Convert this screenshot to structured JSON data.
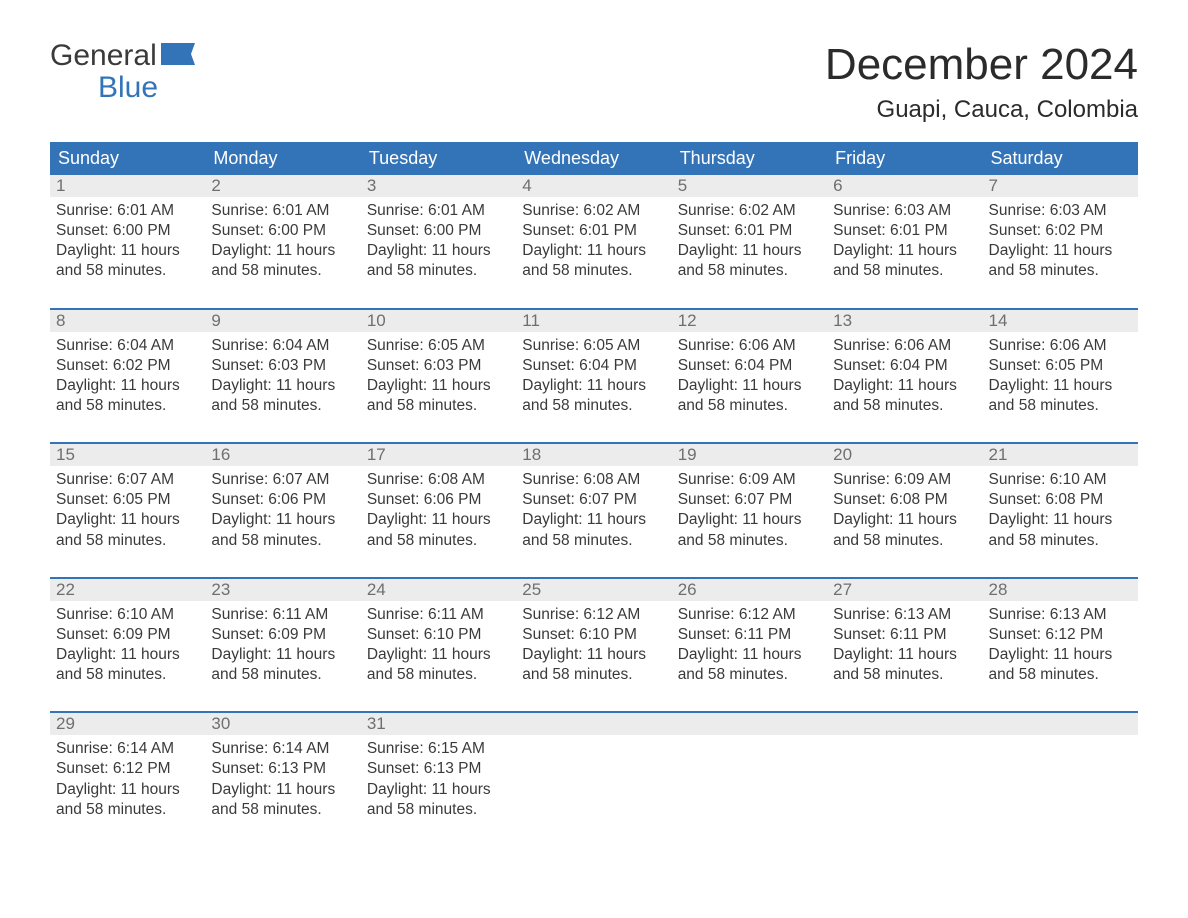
{
  "logo": {
    "line1": "General",
    "line2": "Blue",
    "flag_color": "#3374b8"
  },
  "title": "December 2024",
  "location": "Guapi, Cauca, Colombia",
  "colors": {
    "header_bg": "#3374b8",
    "header_text": "#ffffff",
    "daynum_bg": "#ececec",
    "daynum_text": "#6f6f6f",
    "body_text": "#3a3a3a",
    "week_border": "#3374b8",
    "page_bg": "#ffffff"
  },
  "typography": {
    "title_fontsize": 44,
    "location_fontsize": 24,
    "dayheader_fontsize": 18,
    "daynum_fontsize": 17,
    "cell_fontsize": 15.5,
    "font_family": "Arial"
  },
  "day_headers": [
    "Sunday",
    "Monday",
    "Tuesday",
    "Wednesday",
    "Thursday",
    "Friday",
    "Saturday"
  ],
  "weeks": [
    [
      {
        "n": "1",
        "sunrise": "Sunrise: 6:01 AM",
        "sunset": "Sunset: 6:00 PM",
        "dl1": "Daylight: 11 hours",
        "dl2": "and 58 minutes."
      },
      {
        "n": "2",
        "sunrise": "Sunrise: 6:01 AM",
        "sunset": "Sunset: 6:00 PM",
        "dl1": "Daylight: 11 hours",
        "dl2": "and 58 minutes."
      },
      {
        "n": "3",
        "sunrise": "Sunrise: 6:01 AM",
        "sunset": "Sunset: 6:00 PM",
        "dl1": "Daylight: 11 hours",
        "dl2": "and 58 minutes."
      },
      {
        "n": "4",
        "sunrise": "Sunrise: 6:02 AM",
        "sunset": "Sunset: 6:01 PM",
        "dl1": "Daylight: 11 hours",
        "dl2": "and 58 minutes."
      },
      {
        "n": "5",
        "sunrise": "Sunrise: 6:02 AM",
        "sunset": "Sunset: 6:01 PM",
        "dl1": "Daylight: 11 hours",
        "dl2": "and 58 minutes."
      },
      {
        "n": "6",
        "sunrise": "Sunrise: 6:03 AM",
        "sunset": "Sunset: 6:01 PM",
        "dl1": "Daylight: 11 hours",
        "dl2": "and 58 minutes."
      },
      {
        "n": "7",
        "sunrise": "Sunrise: 6:03 AM",
        "sunset": "Sunset: 6:02 PM",
        "dl1": "Daylight: 11 hours",
        "dl2": "and 58 minutes."
      }
    ],
    [
      {
        "n": "8",
        "sunrise": "Sunrise: 6:04 AM",
        "sunset": "Sunset: 6:02 PM",
        "dl1": "Daylight: 11 hours",
        "dl2": "and 58 minutes."
      },
      {
        "n": "9",
        "sunrise": "Sunrise: 6:04 AM",
        "sunset": "Sunset: 6:03 PM",
        "dl1": "Daylight: 11 hours",
        "dl2": "and 58 minutes."
      },
      {
        "n": "10",
        "sunrise": "Sunrise: 6:05 AM",
        "sunset": "Sunset: 6:03 PM",
        "dl1": "Daylight: 11 hours",
        "dl2": "and 58 minutes."
      },
      {
        "n": "11",
        "sunrise": "Sunrise: 6:05 AM",
        "sunset": "Sunset: 6:04 PM",
        "dl1": "Daylight: 11 hours",
        "dl2": "and 58 minutes."
      },
      {
        "n": "12",
        "sunrise": "Sunrise: 6:06 AM",
        "sunset": "Sunset: 6:04 PM",
        "dl1": "Daylight: 11 hours",
        "dl2": "and 58 minutes."
      },
      {
        "n": "13",
        "sunrise": "Sunrise: 6:06 AM",
        "sunset": "Sunset: 6:04 PM",
        "dl1": "Daylight: 11 hours",
        "dl2": "and 58 minutes."
      },
      {
        "n": "14",
        "sunrise": "Sunrise: 6:06 AM",
        "sunset": "Sunset: 6:05 PM",
        "dl1": "Daylight: 11 hours",
        "dl2": "and 58 minutes."
      }
    ],
    [
      {
        "n": "15",
        "sunrise": "Sunrise: 6:07 AM",
        "sunset": "Sunset: 6:05 PM",
        "dl1": "Daylight: 11 hours",
        "dl2": "and 58 minutes."
      },
      {
        "n": "16",
        "sunrise": "Sunrise: 6:07 AM",
        "sunset": "Sunset: 6:06 PM",
        "dl1": "Daylight: 11 hours",
        "dl2": "and 58 minutes."
      },
      {
        "n": "17",
        "sunrise": "Sunrise: 6:08 AM",
        "sunset": "Sunset: 6:06 PM",
        "dl1": "Daylight: 11 hours",
        "dl2": "and 58 minutes."
      },
      {
        "n": "18",
        "sunrise": "Sunrise: 6:08 AM",
        "sunset": "Sunset: 6:07 PM",
        "dl1": "Daylight: 11 hours",
        "dl2": "and 58 minutes."
      },
      {
        "n": "19",
        "sunrise": "Sunrise: 6:09 AM",
        "sunset": "Sunset: 6:07 PM",
        "dl1": "Daylight: 11 hours",
        "dl2": "and 58 minutes."
      },
      {
        "n": "20",
        "sunrise": "Sunrise: 6:09 AM",
        "sunset": "Sunset: 6:08 PM",
        "dl1": "Daylight: 11 hours",
        "dl2": "and 58 minutes."
      },
      {
        "n": "21",
        "sunrise": "Sunrise: 6:10 AM",
        "sunset": "Sunset: 6:08 PM",
        "dl1": "Daylight: 11 hours",
        "dl2": "and 58 minutes."
      }
    ],
    [
      {
        "n": "22",
        "sunrise": "Sunrise: 6:10 AM",
        "sunset": "Sunset: 6:09 PM",
        "dl1": "Daylight: 11 hours",
        "dl2": "and 58 minutes."
      },
      {
        "n": "23",
        "sunrise": "Sunrise: 6:11 AM",
        "sunset": "Sunset: 6:09 PM",
        "dl1": "Daylight: 11 hours",
        "dl2": "and 58 minutes."
      },
      {
        "n": "24",
        "sunrise": "Sunrise: 6:11 AM",
        "sunset": "Sunset: 6:10 PM",
        "dl1": "Daylight: 11 hours",
        "dl2": "and 58 minutes."
      },
      {
        "n": "25",
        "sunrise": "Sunrise: 6:12 AM",
        "sunset": "Sunset: 6:10 PM",
        "dl1": "Daylight: 11 hours",
        "dl2": "and 58 minutes."
      },
      {
        "n": "26",
        "sunrise": "Sunrise: 6:12 AM",
        "sunset": "Sunset: 6:11 PM",
        "dl1": "Daylight: 11 hours",
        "dl2": "and 58 minutes."
      },
      {
        "n": "27",
        "sunrise": "Sunrise: 6:13 AM",
        "sunset": "Sunset: 6:11 PM",
        "dl1": "Daylight: 11 hours",
        "dl2": "and 58 minutes."
      },
      {
        "n": "28",
        "sunrise": "Sunrise: 6:13 AM",
        "sunset": "Sunset: 6:12 PM",
        "dl1": "Daylight: 11 hours",
        "dl2": "and 58 minutes."
      }
    ],
    [
      {
        "n": "29",
        "sunrise": "Sunrise: 6:14 AM",
        "sunset": "Sunset: 6:12 PM",
        "dl1": "Daylight: 11 hours",
        "dl2": "and 58 minutes."
      },
      {
        "n": "30",
        "sunrise": "Sunrise: 6:14 AM",
        "sunset": "Sunset: 6:13 PM",
        "dl1": "Daylight: 11 hours",
        "dl2": "and 58 minutes."
      },
      {
        "n": "31",
        "sunrise": "Sunrise: 6:15 AM",
        "sunset": "Sunset: 6:13 PM",
        "dl1": "Daylight: 11 hours",
        "dl2": "and 58 minutes."
      },
      null,
      null,
      null,
      null
    ]
  ]
}
